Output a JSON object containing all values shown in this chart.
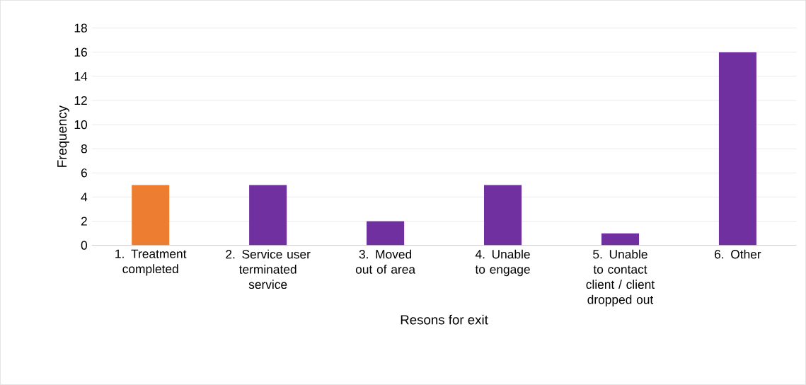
{
  "chart_data": {
    "type": "bar",
    "xlabel": "Resons for exit",
    "ylabel": "Frequency",
    "categories": [
      "1. Treatment completed",
      "2. Service user terminated service",
      "3. Moved out of area",
      "4. Unable to engage",
      "5. Unable to contact client / client dropped out",
      "6. Other"
    ],
    "values": [
      5,
      5,
      2,
      5,
      1,
      16
    ],
    "colors": [
      "#ed7d31",
      "#7030a0",
      "#7030a0",
      "#7030a0",
      "#7030a0",
      "#7030a0"
    ],
    "ylim": [
      0,
      18
    ],
    "yticks": [
      0,
      2,
      4,
      6,
      8,
      10,
      12,
      14,
      16,
      18
    ],
    "grid": "y"
  }
}
